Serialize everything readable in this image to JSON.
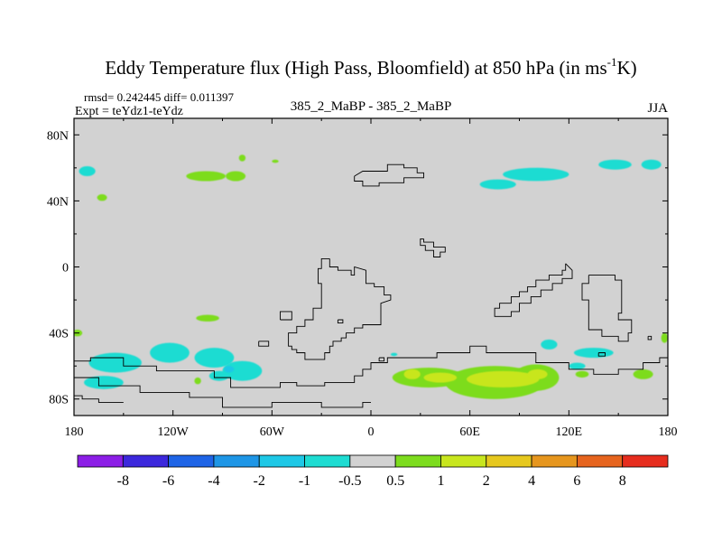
{
  "chart_data": {
    "type": "heatmap",
    "title": "Eddy Temperature flux (High Pass, Bloomfield) at 850 hPa (in ms",
    "title_superscript": "-1",
    "title_suffix": "K)",
    "stats_line": "rmsd= 0.242445 diff= 0.011397",
    "expt_line": "Expt = teYdz1-teYdz",
    "case_line": "385_2_MaBP - 385_2_MaBP",
    "season": "JJA",
    "x_ticks": [
      "180",
      "120W",
      "60W",
      "0",
      "60E",
      "120E",
      "180"
    ],
    "y_ticks": [
      "80N",
      "40N",
      "0",
      "40S",
      "80S"
    ],
    "xlim": [
      -180,
      180
    ],
    "ylim": [
      -90,
      90
    ],
    "colorbar": {
      "labels": [
        "-8",
        "-6",
        "-4",
        "-2",
        "-1",
        "-0.5",
        "0.5",
        "1",
        "2",
        "4",
        "6",
        "8"
      ],
      "colors": [
        "#8c1ee6",
        "#3c28dc",
        "#1e64e6",
        "#1e96e6",
        "#1ec8e6",
        "#1edcd2",
        "#d2d2d2",
        "#7ddc1e",
        "#c8e61e",
        "#e6c81e",
        "#e6961e",
        "#e6641e",
        "#e62d1e"
      ]
    },
    "regions": [
      {
        "lon": -172,
        "lat": 58,
        "rx": 5,
        "ry": 3,
        "level": "-1"
      },
      {
        "lon": -163,
        "lat": 42,
        "rx": 3,
        "ry": 2,
        "level": "0.5"
      },
      {
        "lon": -100,
        "lat": 55,
        "rx": 12,
        "ry": 3,
        "level": "0.5"
      },
      {
        "lon": -82,
        "lat": 55,
        "rx": 6,
        "ry": 3,
        "level": "0.5"
      },
      {
        "lon": -78,
        "lat": 66,
        "rx": 2,
        "ry": 2,
        "level": "0.5"
      },
      {
        "lon": -58,
        "lat": 64,
        "rx": 2,
        "ry": 1,
        "level": "0.5"
      },
      {
        "lon": 100,
        "lat": 56,
        "rx": 20,
        "ry": 4,
        "level": "-1"
      },
      {
        "lon": 77,
        "lat": 50,
        "rx": 11,
        "ry": 3,
        "level": "-1"
      },
      {
        "lon": 148,
        "lat": 62,
        "rx": 10,
        "ry": 3,
        "level": "-1"
      },
      {
        "lon": 170,
        "lat": 62,
        "rx": 6,
        "ry": 3,
        "level": "-1"
      },
      {
        "lon": -99,
        "lat": -31,
        "rx": 7,
        "ry": 2,
        "level": "0.5"
      },
      {
        "lon": -178,
        "lat": -40,
        "rx": 3,
        "ry": 2,
        "level": "0.5"
      },
      {
        "lon": -155,
        "lat": -58,
        "rx": 16,
        "ry": 6,
        "level": "-1"
      },
      {
        "lon": -162,
        "lat": -70,
        "rx": 12,
        "ry": 4,
        "level": "-1"
      },
      {
        "lon": -122,
        "lat": -52,
        "rx": 12,
        "ry": 6,
        "level": "-1"
      },
      {
        "lon": -95,
        "lat": -55,
        "rx": 12,
        "ry": 6,
        "level": "-1"
      },
      {
        "lon": -78,
        "lat": -63,
        "rx": 12,
        "ry": 6,
        "level": "-1"
      },
      {
        "lon": -92,
        "lat": -66,
        "rx": 6,
        "ry": 3,
        "level": "-1"
      },
      {
        "lon": -86,
        "lat": -62,
        "rx": 3,
        "ry": 2,
        "level": "-1.5"
      },
      {
        "lon": -105,
        "lat": -69,
        "rx": 2,
        "ry": 2,
        "level": "0.5"
      },
      {
        "lon": 35,
        "lat": -67,
        "rx": 22,
        "ry": 6,
        "level": "0.5"
      },
      {
        "lon": 75,
        "lat": -70,
        "rx": 30,
        "ry": 10,
        "level": "0.5"
      },
      {
        "lon": 100,
        "lat": -67,
        "rx": 14,
        "ry": 8,
        "level": "0.5"
      },
      {
        "lon": 80,
        "lat": -68,
        "rx": 22,
        "ry": 5,
        "level": "1"
      },
      {
        "lon": 101,
        "lat": -65,
        "rx": 6,
        "ry": 3,
        "level": "1"
      },
      {
        "lon": 42,
        "lat": -67,
        "rx": 10,
        "ry": 3,
        "level": "1"
      },
      {
        "lon": 25,
        "lat": -65,
        "rx": 5,
        "ry": 3,
        "level": "1"
      },
      {
        "lon": 108,
        "lat": -47,
        "rx": 5,
        "ry": 3,
        "level": "-1"
      },
      {
        "lon": 135,
        "lat": -52,
        "rx": 12,
        "ry": 3,
        "level": "-1"
      },
      {
        "lon": 125,
        "lat": -60,
        "rx": 5,
        "ry": 2,
        "level": "-1"
      },
      {
        "lon": 165,
        "lat": -65,
        "rx": 6,
        "ry": 3,
        "level": "0.5"
      },
      {
        "lon": 178,
        "lat": -43,
        "rx": 2,
        "ry": 3,
        "level": "0.5"
      },
      {
        "lon": 128,
        "lat": -65,
        "rx": 4,
        "ry": 2,
        "level": "0.5"
      },
      {
        "lon": 14,
        "lat": -53,
        "rx": 2,
        "ry": 1,
        "level": "-1"
      }
    ],
    "coastlines": [
      [
        [
          -10,
          55
        ],
        [
          -5,
          58
        ],
        [
          10,
          58
        ],
        [
          10,
          62
        ],
        [
          20,
          62
        ],
        [
          20,
          60
        ],
        [
          28,
          60
        ],
        [
          28,
          57
        ],
        [
          32,
          57
        ],
        [
          32,
          54
        ],
        [
          20,
          54
        ],
        [
          20,
          51
        ],
        [
          5,
          51
        ],
        [
          5,
          49
        ],
        [
          -5,
          49
        ],
        [
          -5,
          52
        ],
        [
          -10,
          52
        ],
        [
          -10,
          55
        ]
      ],
      [
        [
          32,
          17
        ],
        [
          32,
          15
        ],
        [
          38,
          15
        ],
        [
          38,
          12
        ],
        [
          45,
          12
        ],
        [
          45,
          9
        ],
        [
          42,
          9
        ],
        [
          42,
          6
        ],
        [
          38,
          6
        ],
        [
          38,
          10
        ],
        [
          33,
          10
        ],
        [
          33,
          13
        ],
        [
          30,
          13
        ],
        [
          30,
          17
        ],
        [
          32,
          17
        ]
      ],
      [
        [
          -25,
          5
        ],
        [
          -25,
          0
        ],
        [
          -20,
          0
        ],
        [
          -20,
          -2
        ],
        [
          -12,
          -2
        ],
        [
          -12,
          -5
        ],
        [
          -10,
          -5
        ],
        [
          -10,
          0
        ],
        [
          -3,
          -2
        ],
        [
          -3,
          -10
        ],
        [
          2,
          -10
        ],
        [
          2,
          -12
        ],
        [
          8,
          -12
        ],
        [
          8,
          -17
        ],
        [
          12,
          -17
        ],
        [
          12,
          -20
        ],
        [
          6,
          -22
        ],
        [
          6,
          -35
        ],
        [
          -5,
          -35
        ],
        [
          -5,
          -37
        ],
        [
          -10,
          -37
        ],
        [
          -10,
          -40
        ],
        [
          -15,
          -40
        ],
        [
          -15,
          -43
        ],
        [
          -18,
          -43
        ],
        [
          -18,
          -45
        ],
        [
          -23,
          -45
        ],
        [
          -23,
          -48
        ],
        [
          -25,
          -48
        ],
        [
          -25,
          -52
        ],
        [
          -28,
          -52
        ],
        [
          -28,
          -56
        ],
        [
          -40,
          -56
        ],
        [
          -40,
          -52
        ],
        [
          -45,
          -52
        ],
        [
          -45,
          -50
        ],
        [
          -48,
          -50
        ],
        [
          -48,
          -48
        ],
        [
          -50,
          -48
        ],
        [
          -50,
          -40
        ],
        [
          -45,
          -40
        ],
        [
          -45,
          -36
        ],
        [
          -40,
          -36
        ],
        [
          -40,
          -32
        ],
        [
          -35,
          -32
        ],
        [
          -35,
          -25
        ],
        [
          -30,
          -25
        ],
        [
          -30,
          -10
        ],
        [
          -32,
          -10
        ],
        [
          -32,
          -1
        ],
        [
          -30,
          -1
        ],
        [
          -30,
          5
        ],
        [
          -25,
          5
        ]
      ],
      [
        [
          -55,
          -32
        ],
        [
          -48,
          -32
        ],
        [
          -48,
          -27
        ],
        [
          -55,
          -27
        ],
        [
          -55,
          -32
        ]
      ],
      [
        [
          -20,
          -32
        ],
        [
          -17,
          -32
        ],
        [
          -17,
          -34
        ],
        [
          -20,
          -34
        ],
        [
          -20,
          -32
        ]
      ],
      [
        [
          118,
          2
        ],
        [
          118,
          -2
        ],
        [
          116,
          -2
        ],
        [
          116,
          -5
        ],
        [
          108,
          -5
        ],
        [
          108,
          -8
        ],
        [
          100,
          -8
        ],
        [
          100,
          -12
        ],
        [
          95,
          -12
        ],
        [
          95,
          -15
        ],
        [
          90,
          -15
        ],
        [
          90,
          -18
        ],
        [
          85,
          -18
        ],
        [
          85,
          -22
        ],
        [
          78,
          -22
        ],
        [
          78,
          -25
        ],
        [
          75,
          -25
        ],
        [
          75,
          -30
        ],
        [
          85,
          -30
        ],
        [
          85,
          -27
        ],
        [
          90,
          -27
        ],
        [
          90,
          -22
        ],
        [
          97,
          -22
        ],
        [
          97,
          -18
        ],
        [
          103,
          -18
        ],
        [
          103,
          -14
        ],
        [
          110,
          -14
        ],
        [
          110,
          -10
        ],
        [
          116,
          -10
        ],
        [
          116,
          -7
        ],
        [
          122,
          -7
        ],
        [
          122,
          -2
        ],
        [
          118,
          2
        ]
      ],
      [
        [
          132,
          -5
        ],
        [
          148,
          -5
        ],
        [
          148,
          -8
        ],
        [
          152,
          -8
        ],
        [
          152,
          -28
        ],
        [
          150,
          -28
        ],
        [
          150,
          -32
        ],
        [
          158,
          -32
        ],
        [
          158,
          -40
        ],
        [
          156,
          -40
        ],
        [
          156,
          -45
        ],
        [
          150,
          -45
        ],
        [
          150,
          -42
        ],
        [
          140,
          -42
        ],
        [
          140,
          -38
        ],
        [
          132,
          -38
        ],
        [
          132,
          -20
        ],
        [
          128,
          -20
        ],
        [
          128,
          -10
        ],
        [
          132,
          -10
        ],
        [
          132,
          -5
        ]
      ],
      [
        [
          168,
          -42
        ],
        [
          170,
          -42
        ],
        [
          170,
          -44
        ],
        [
          168,
          -44
        ],
        [
          168,
          -42
        ]
      ],
      [
        [
          -180,
          -57
        ],
        [
          -170,
          -57
        ],
        [
          -170,
          -55
        ],
        [
          -150,
          -55
        ],
        [
          -150,
          -60
        ],
        [
          -130,
          -60
        ],
        [
          -130,
          -63
        ],
        [
          -95,
          -63
        ],
        [
          -95,
          -67
        ],
        [
          -85,
          -67
        ],
        [
          -85,
          -73
        ],
        [
          -55,
          -73
        ],
        [
          -55,
          -70
        ],
        [
          -45,
          -70
        ],
        [
          -45,
          -72
        ],
        [
          -28,
          -72
        ],
        [
          -28,
          -70
        ],
        [
          -10,
          -70
        ],
        [
          -10,
          -66
        ],
        [
          -5,
          -66
        ],
        [
          -5,
          -62
        ],
        [
          0,
          -62
        ],
        [
          0,
          -58
        ],
        [
          10,
          -58
        ],
        [
          10,
          -55
        ],
        [
          40,
          -55
        ],
        [
          40,
          -52
        ],
        [
          60,
          -52
        ],
        [
          60,
          -48
        ],
        [
          70,
          -48
        ],
        [
          70,
          -52
        ],
        [
          100,
          -52
        ],
        [
          100,
          -58
        ],
        [
          120,
          -58
        ],
        [
          120,
          -62
        ],
        [
          135,
          -62
        ],
        [
          135,
          -65
        ],
        [
          150,
          -65
        ],
        [
          150,
          -62
        ],
        [
          165,
          -62
        ],
        [
          165,
          -58
        ],
        [
          175,
          -58
        ],
        [
          175,
          -55
        ],
        [
          180,
          -55
        ]
      ],
      [
        [
          -180,
          -67
        ],
        [
          -165,
          -67
        ],
        [
          -165,
          -72
        ],
        [
          -140,
          -72
        ],
        [
          -140,
          -76
        ],
        [
          -110,
          -76
        ],
        [
          -110,
          -79
        ],
        [
          -90,
          -79
        ],
        [
          -90,
          -85
        ],
        [
          -60,
          -85
        ],
        [
          -60,
          -82
        ],
        [
          -30,
          -82
        ],
        [
          -30,
          -85
        ],
        [
          -5,
          -85
        ],
        [
          -5,
          -82
        ],
        [
          0,
          -82
        ]
      ],
      [
        [
          -180,
          -78
        ],
        [
          -175,
          -78
        ],
        [
          -175,
          -80
        ],
        [
          -165,
          -80
        ],
        [
          -165,
          -82
        ],
        [
          -150,
          -82
        ]
      ],
      [
        [
          -68,
          -45
        ],
        [
          -62,
          -45
        ],
        [
          -62,
          -48
        ],
        [
          -68,
          -48
        ],
        [
          -68,
          -45
        ]
      ],
      [
        [
          5,
          -55
        ],
        [
          8,
          -55
        ],
        [
          8,
          -57
        ],
        [
          5,
          -57
        ],
        [
          5,
          -55
        ]
      ],
      [
        [
          138,
          -52
        ],
        [
          142,
          -52
        ],
        [
          142,
          -54
        ],
        [
          138,
          -54
        ],
        [
          138,
          -52
        ]
      ]
    ]
  }
}
